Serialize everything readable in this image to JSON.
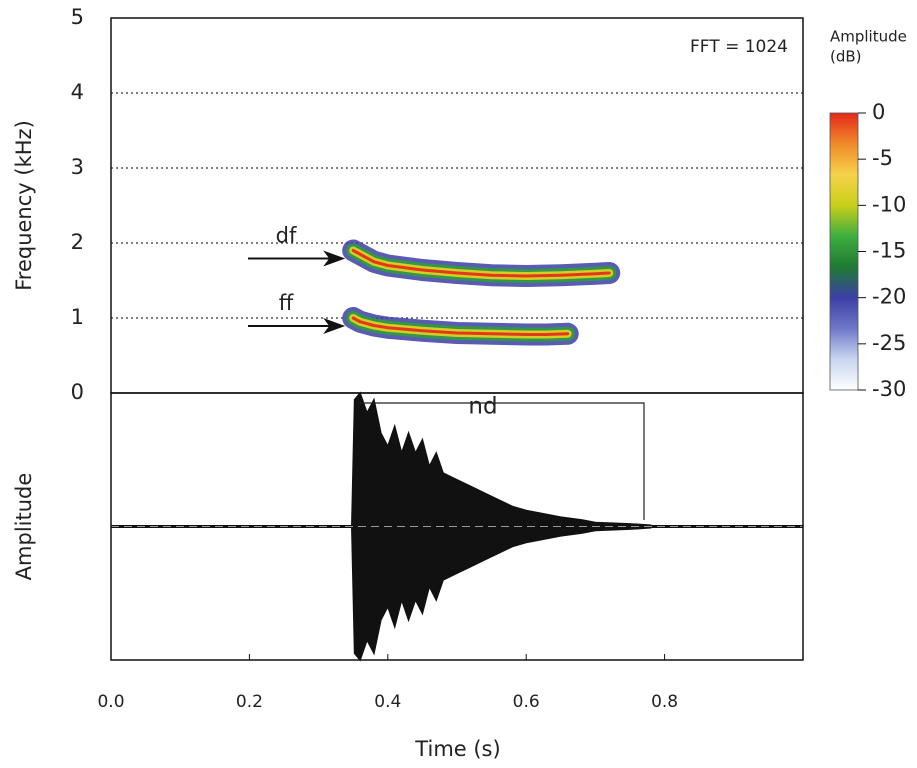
{
  "chart_data": [
    {
      "type": "spectrogram",
      "ylabel": "Frequency (kHz)",
      "annotation": "FFT = 1024",
      "xlim": [
        0,
        1
      ],
      "ylim": [
        0,
        5
      ],
      "yticks": [
        0,
        1,
        2,
        3,
        4,
        5
      ],
      "grid": true,
      "layer_colors": [
        "#3c3fa5",
        "#2f9c3c",
        "#e6d320",
        "#e5281b"
      ],
      "series": [
        {
          "name": "df",
          "x": [
            0.35,
            0.36,
            0.38,
            0.4,
            0.45,
            0.5,
            0.55,
            0.6,
            0.65,
            0.7,
            0.72
          ],
          "values": [
            1.9,
            1.85,
            1.75,
            1.7,
            1.64,
            1.6,
            1.57,
            1.56,
            1.57,
            1.59,
            1.6
          ]
        },
        {
          "name": "ff",
          "x": [
            0.35,
            0.36,
            0.38,
            0.4,
            0.45,
            0.5,
            0.55,
            0.6,
            0.63,
            0.66
          ],
          "values": [
            1.0,
            0.95,
            0.9,
            0.87,
            0.83,
            0.8,
            0.79,
            0.78,
            0.78,
            0.79
          ]
        }
      ],
      "colorbar": {
        "title": [
          "Amplitude",
          "(dB)"
        ],
        "lim": [
          -30,
          0
        ],
        "ticks": [
          0,
          -5,
          -10,
          -15,
          -20,
          -25,
          -30
        ],
        "colors": [
          "#ffffff",
          "#c8d6f0",
          "#6e78c8",
          "#3c3fa5",
          "#1f7a33",
          "#3fae3f",
          "#c9cf1a",
          "#f5d24a",
          "#f08a2a",
          "#e5281b"
        ]
      }
    },
    {
      "type": "waveform",
      "ylabel": "Amplitude",
      "xlabel": "Time (s)",
      "annotation": "nd",
      "xlim": [
        0,
        1
      ],
      "xticks": [
        {
          "value": 0,
          "label": "0.0"
        },
        0.2,
        0.4,
        0.6,
        0.8
      ],
      "ylim": [
        -1,
        1
      ],
      "color": "#111111",
      "x": [
        0.348,
        0.352,
        0.36,
        0.37,
        0.38,
        0.39,
        0.4,
        0.41,
        0.42,
        0.43,
        0.44,
        0.45,
        0.46,
        0.47,
        0.48,
        0.5,
        0.52,
        0.54,
        0.56,
        0.58,
        0.6,
        0.62,
        0.65,
        0.68,
        0.7,
        0.75,
        0.78
      ],
      "values": [
        0.02,
        0.95,
        1.0,
        0.85,
        0.95,
        0.7,
        0.6,
        0.75,
        0.55,
        0.7,
        0.55,
        0.65,
        0.45,
        0.55,
        0.4,
        0.35,
        0.3,
        0.25,
        0.2,
        0.15,
        0.12,
        0.1,
        0.07,
        0.05,
        0.03,
        0.02,
        0.01
      ]
    }
  ]
}
